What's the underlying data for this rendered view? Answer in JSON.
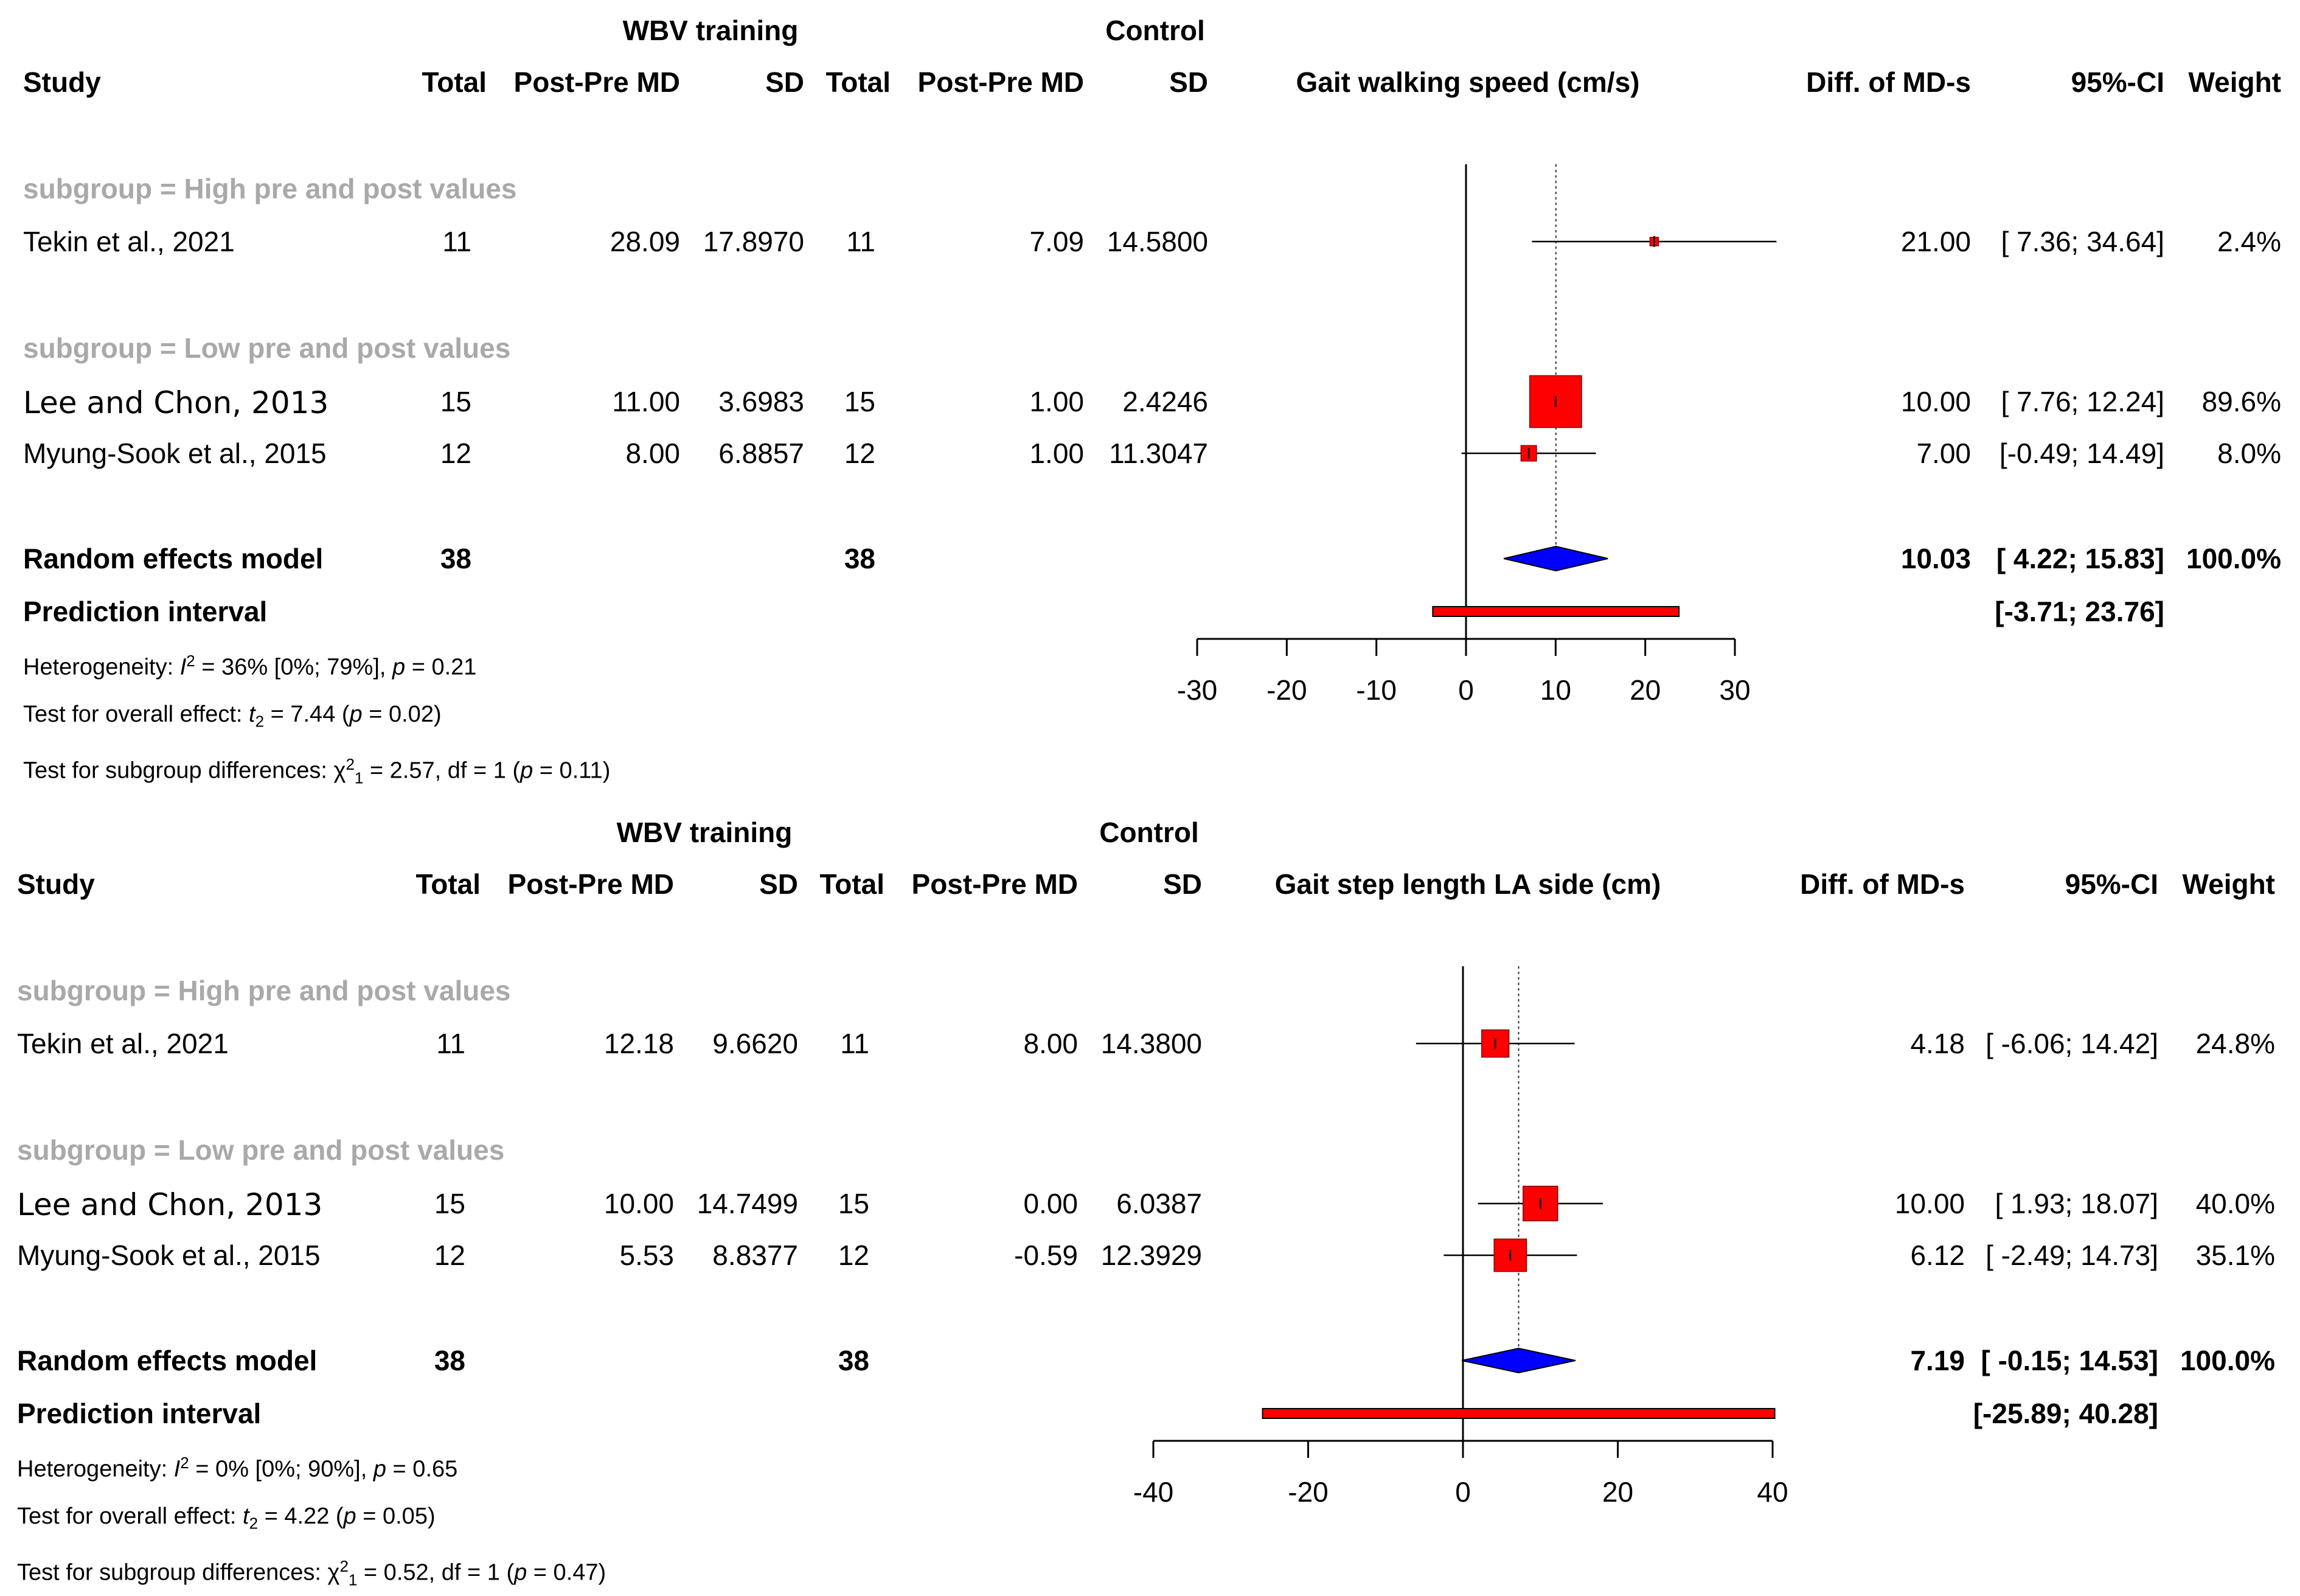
{
  "chart_data": [
    {
      "type": "forest",
      "group_headers": {
        "treatment": "WBV training",
        "control": "Control"
      },
      "columns": {
        "study": "Study",
        "total": "Total",
        "mean": "Post-Pre MD",
        "sd": "SD",
        "effect": "Diff. of MD-s",
        "ci": "95%-CI",
        "weight": "Weight"
      },
      "xlabel": "Gait walking speed (cm/s)",
      "xlim": [
        -30,
        30
      ],
      "ticks": [
        -30,
        -20,
        -10,
        0,
        10,
        20,
        30
      ],
      "ref_line": 10.03,
      "studies": [
        {
          "subgroup": "subgroup = High pre and post values",
          "rows": [
            {
              "study": "Tekin et al., 2021",
              "n_t": "11",
              "md_t": "28.09",
              "sd_t": "17.8970",
              "n_c": "11",
              "md_c": "7.09",
              "sd_c": "14.5800",
              "est": 21.0,
              "lo": 7.36,
              "hi": 34.64,
              "effect_text": "21.00",
              "ci_text": "[ 7.36; 34.64]",
              "weight_text": "2.4%",
              "weight": 2.4
            }
          ]
        },
        {
          "subgroup": "subgroup = Low pre and post values",
          "rows": [
            {
              "study": "Lee and Chon, 2013",
              "n_t": "15",
              "md_t": "11.00",
              "sd_t": "3.6983",
              "n_c": "15",
              "md_c": "1.00",
              "sd_c": "2.4246",
              "est": 10.0,
              "lo": 7.76,
              "hi": 12.24,
              "effect_text": "10.00",
              "ci_text": "[ 7.76; 12.24]",
              "weight_text": "89.6%",
              "weight": 89.6
            },
            {
              "study": "Myung-Sook et al., 2015",
              "n_t": "12",
              "md_t": "8.00",
              "sd_t": "6.8857",
              "n_c": "12",
              "md_c": "1.00",
              "sd_c": "11.3047",
              "est": 7.0,
              "lo": -0.49,
              "hi": 14.49,
              "effect_text": "7.00",
              "ci_text": "[-0.49; 14.49]",
              "weight_text": "8.0%",
              "weight": 8.0
            }
          ]
        }
      ],
      "model": {
        "label": "Random effects model",
        "n_t": "38",
        "n_c": "38",
        "est": 10.03,
        "lo": 4.22,
        "hi": 15.83,
        "effect_text": "10.03",
        "ci_text": "[ 4.22; 15.83]",
        "weight_text": "100.0%"
      },
      "prediction": {
        "label": "Prediction interval",
        "lo": -3.71,
        "hi": 23.76,
        "ci_text": "[-3.71; 23.76]"
      },
      "heterogeneity": {
        "prefix": "Heterogeneity: ",
        "i": "I",
        "sup": "2",
        "rest": " = 36% [0%; 79%], ",
        "p": "p",
        "p_val": " = 0.21"
      },
      "overall": {
        "prefix": "Test for overall effect: ",
        "t": "t",
        "sub": "2",
        "rest": " = 7.44 (",
        "p": "p",
        "p_val": " = 0.02)"
      },
      "subgroup_test": {
        "prefix": "Test for subgroup differences: ",
        "chi": "χ",
        "sup": "2",
        "sub": "1",
        "rest": " = 2.57, df = 1 (",
        "p": "p",
        "p_val": " = 0.11)"
      }
    },
    {
      "type": "forest",
      "group_headers": {
        "treatment": "WBV training",
        "control": "Control"
      },
      "columns": {
        "study": "Study",
        "total": "Total",
        "mean": "Post-Pre MD",
        "sd": "SD",
        "effect": "Diff. of MD-s",
        "ci": "95%-CI",
        "weight": "Weight"
      },
      "xlabel": "Gait step length LA side (cm)",
      "xlim": [
        -40,
        40
      ],
      "ticks": [
        -40,
        -20,
        0,
        20,
        40
      ],
      "ref_line": 7.19,
      "studies": [
        {
          "subgroup": "subgroup = High pre and post values",
          "rows": [
            {
              "study": "Tekin et al., 2021",
              "n_t": "11",
              "md_t": "12.18",
              "sd_t": "9.6620",
              "n_c": "11",
              "md_c": "8.00",
              "sd_c": "14.3800",
              "est": 4.18,
              "lo": -6.06,
              "hi": 14.42,
              "effect_text": "4.18",
              "ci_text": "[ -6.06; 14.42]",
              "weight_text": "24.8%",
              "weight": 24.8
            }
          ]
        },
        {
          "subgroup": "subgroup = Low pre and post values",
          "rows": [
            {
              "study": "Lee and Chon, 2013",
              "n_t": "15",
              "md_t": "10.00",
              "sd_t": "14.7499",
              "n_c": "15",
              "md_c": "0.00",
              "sd_c": "6.0387",
              "est": 10.0,
              "lo": 1.93,
              "hi": 18.07,
              "effect_text": "10.00",
              "ci_text": "[  1.93; 18.07]",
              "weight_text": "40.0%",
              "weight": 40.0
            },
            {
              "study": "Myung-Sook et al., 2015",
              "n_t": "12",
              "md_t": "5.53",
              "sd_t": "8.8377",
              "n_c": "12",
              "md_c": "-0.59",
              "sd_c": "12.3929",
              "est": 6.12,
              "lo": -2.49,
              "hi": 14.73,
              "effect_text": "6.12",
              "ci_text": "[ -2.49; 14.73]",
              "weight_text": "35.1%",
              "weight": 35.1
            }
          ]
        }
      ],
      "model": {
        "label": "Random effects model",
        "n_t": "38",
        "n_c": "38",
        "est": 7.19,
        "lo": -0.15,
        "hi": 14.53,
        "effect_text": "7.19",
        "ci_text": "[ -0.15; 14.53]",
        "weight_text": "100.0%"
      },
      "prediction": {
        "label": "Prediction interval",
        "lo": -25.89,
        "hi": 40.28,
        "ci_text": "[-25.89; 40.28]"
      },
      "heterogeneity": {
        "prefix": "Heterogeneity: ",
        "i": "I",
        "sup": "2",
        "rest": " = 0% [0%; 90%], ",
        "p": "p",
        "p_val": " = 0.65"
      },
      "overall": {
        "prefix": "Test for overall effect: ",
        "t": "t",
        "sub": "2",
        "rest": " = 4.22 (",
        "p": "p",
        "p_val": " = 0.05)"
      },
      "subgroup_test": {
        "prefix": "Test for subgroup differences: ",
        "chi": "χ",
        "sup": "2",
        "sub": "1",
        "rest": " = 0.52, df = 1 (",
        "p": "p",
        "p_val": " = 0.47)"
      }
    }
  ],
  "colors": {
    "square": "#ff0000",
    "diamond": "#0000ff",
    "prediction": "#ff0000",
    "subgroup": "#a9a9a9"
  }
}
